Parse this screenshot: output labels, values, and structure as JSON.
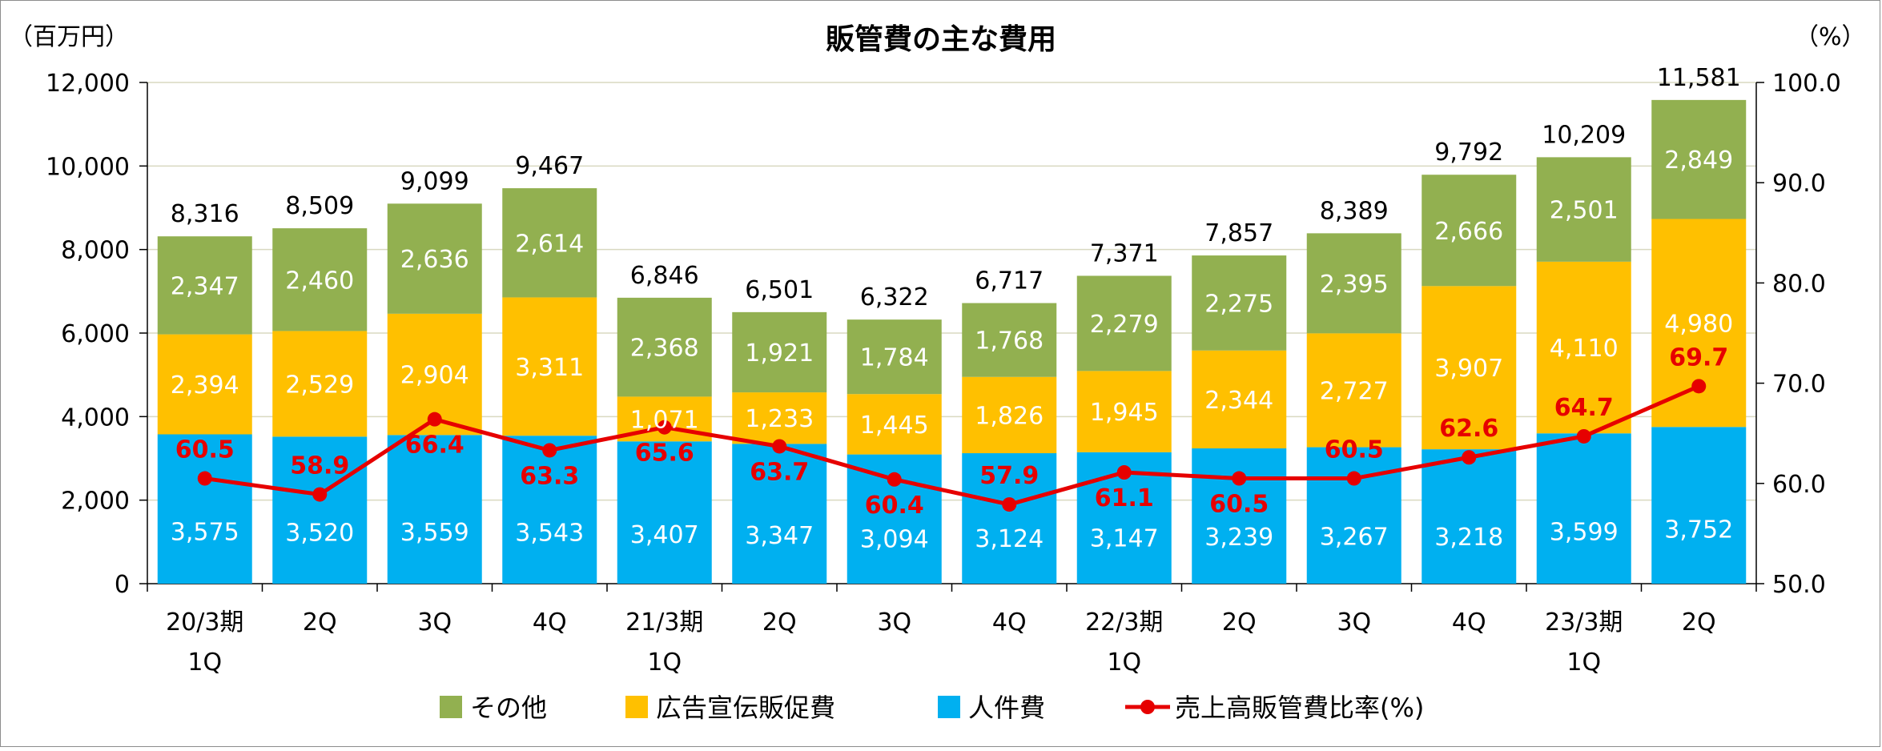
{
  "chart_data": {
    "type": "bar",
    "stacked": true,
    "title": "販管費の主な費用",
    "y_left_unit": "（百万円）",
    "y_right_unit": "（%）",
    "y_left_ticks": [
      "12,000",
      "10,000",
      "8,000",
      "6,000",
      "4,000",
      "2,000",
      "0"
    ],
    "y_right_ticks": [
      "100.0",
      "90.0",
      "80.0",
      "70.0",
      "60.0",
      "50.0"
    ],
    "ylim_left": [
      0,
      12000
    ],
    "ylim_right": [
      50,
      100
    ],
    "grid": true,
    "legend_position": "bottom",
    "categories": [
      {
        "line1": "20/3期",
        "line2": "1Q"
      },
      {
        "line1": "2Q",
        "line2": ""
      },
      {
        "line1": "3Q",
        "line2": ""
      },
      {
        "line1": "4Q",
        "line2": ""
      },
      {
        "line1": "21/3期",
        "line2": "1Q"
      },
      {
        "line1": "2Q",
        "line2": ""
      },
      {
        "line1": "3Q",
        "line2": ""
      },
      {
        "line1": "4Q",
        "line2": ""
      },
      {
        "line1": "22/3期",
        "line2": "1Q"
      },
      {
        "line1": "2Q",
        "line2": ""
      },
      {
        "line1": "3Q",
        "line2": ""
      },
      {
        "line1": "4Q",
        "line2": ""
      },
      {
        "line1": "23/3期",
        "line2": "1Q"
      },
      {
        "line1": "2Q",
        "line2": ""
      }
    ],
    "series": [
      {
        "name": "人件費",
        "color": "#00b0f0",
        "values": [
          3575,
          3520,
          3559,
          3543,
          3407,
          3347,
          3094,
          3124,
          3147,
          3239,
          3267,
          3218,
          3599,
          3752
        ]
      },
      {
        "name": "広告宣伝販促費",
        "color": "#ffc000",
        "values": [
          2394,
          2529,
          2904,
          3311,
          1071,
          1233,
          1445,
          1826,
          1945,
          2344,
          2727,
          3907,
          4110,
          4980
        ]
      },
      {
        "name": "その他",
        "color": "#92b050",
        "values": [
          2347,
          2460,
          2636,
          2614,
          2368,
          1921,
          1784,
          1768,
          2279,
          2275,
          2395,
          2666,
          2501,
          2849
        ]
      }
    ],
    "totals": [
      8316,
      8509,
      9099,
      9467,
      6846,
      6501,
      6322,
      6717,
      7371,
      7857,
      8389,
      9792,
      10209,
      11581
    ],
    "line_series": {
      "name": "売上高販管費比率(%)",
      "color": "#e60000",
      "axis": "right",
      "values": [
        60.5,
        58.9,
        66.4,
        63.3,
        65.6,
        63.7,
        60.4,
        57.9,
        61.1,
        60.5,
        60.5,
        62.6,
        64.7,
        69.7
      ]
    },
    "legend": [
      {
        "label": "その他",
        "color": "#92b050",
        "kind": "box"
      },
      {
        "label": "広告宣伝販促費",
        "color": "#ffc000",
        "kind": "box"
      },
      {
        "label": "人件費",
        "color": "#00b0f0",
        "kind": "box"
      },
      {
        "label": "売上高販管費比率(%)",
        "color": "#e60000",
        "kind": "line"
      }
    ]
  }
}
